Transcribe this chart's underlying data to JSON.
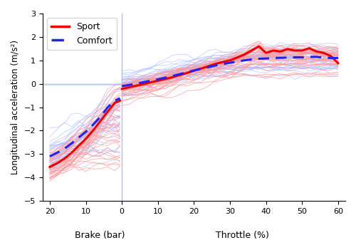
{
  "xlabel_brake": "Brake (bar)",
  "xlabel_throttle": "Throttle (%)",
  "ylabel": "Longitudinal acceleration (m/s²)",
  "ylim": [
    -5,
    3
  ],
  "yticks": [
    -5,
    -4,
    -3,
    -2,
    -1,
    0,
    1,
    2,
    3
  ],
  "sport_color": "#EE0000",
  "comfort_color": "#2222EE",
  "sport_raw_color": "#FF9999",
  "comfort_raw_color": "#AABBFF",
  "mean_linewidth": 2.2,
  "raw_linewidth": 0.6,
  "sport_mean_brake_x": [
    -20,
    -18,
    -16,
    -14,
    -12,
    -10,
    -8,
    -6,
    -4,
    -2,
    -0.5
  ],
  "sport_mean_brake_y": [
    -3.55,
    -3.4,
    -3.2,
    -2.95,
    -2.65,
    -2.35,
    -2.0,
    -1.6,
    -1.2,
    -0.82,
    -0.72
  ],
  "comfort_mean_brake_x": [
    -20,
    -18,
    -16,
    -14,
    -12,
    -10,
    -8,
    -6,
    -4,
    -2,
    -0.5
  ],
  "comfort_mean_brake_y": [
    -3.1,
    -2.95,
    -2.78,
    -2.55,
    -2.3,
    -2.05,
    -1.75,
    -1.42,
    -1.02,
    -0.72,
    -0.62
  ],
  "sport_mean_throttle_x": [
    0,
    2,
    4,
    6,
    8,
    10,
    12,
    14,
    16,
    18,
    20,
    22,
    24,
    26,
    28,
    30,
    32,
    34,
    36,
    38,
    40,
    42,
    44,
    46,
    48,
    50,
    52,
    54,
    56,
    58,
    60
  ],
  "sport_mean_throttle_y": [
    -0.22,
    -0.15,
    -0.08,
    -0.02,
    0.06,
    0.13,
    0.2,
    0.28,
    0.37,
    0.46,
    0.56,
    0.65,
    0.75,
    0.85,
    0.93,
    1.0,
    1.12,
    1.25,
    1.42,
    1.6,
    1.32,
    1.42,
    1.38,
    1.48,
    1.42,
    1.42,
    1.52,
    1.38,
    1.32,
    1.18,
    0.88
  ],
  "comfort_mean_throttle_x": [
    0,
    2,
    4,
    6,
    8,
    10,
    12,
    14,
    16,
    18,
    20,
    22,
    24,
    26,
    28,
    30,
    32,
    34,
    36,
    38,
    40,
    42,
    44,
    46,
    48,
    50,
    52,
    54,
    56,
    58,
    60
  ],
  "comfort_mean_throttle_y": [
    -0.1,
    -0.05,
    0.0,
    0.07,
    0.13,
    0.19,
    0.26,
    0.33,
    0.41,
    0.49,
    0.57,
    0.64,
    0.71,
    0.78,
    0.84,
    0.9,
    0.95,
    1.0,
    1.04,
    1.07,
    1.08,
    1.1,
    1.11,
    1.12,
    1.13,
    1.13,
    1.15,
    1.15,
    1.12,
    1.1,
    1.1
  ],
  "n_sport_raw": 35,
  "n_comfort_raw": 35,
  "vline_color": "#AABBFF",
  "xlim": [
    -22,
    62
  ]
}
